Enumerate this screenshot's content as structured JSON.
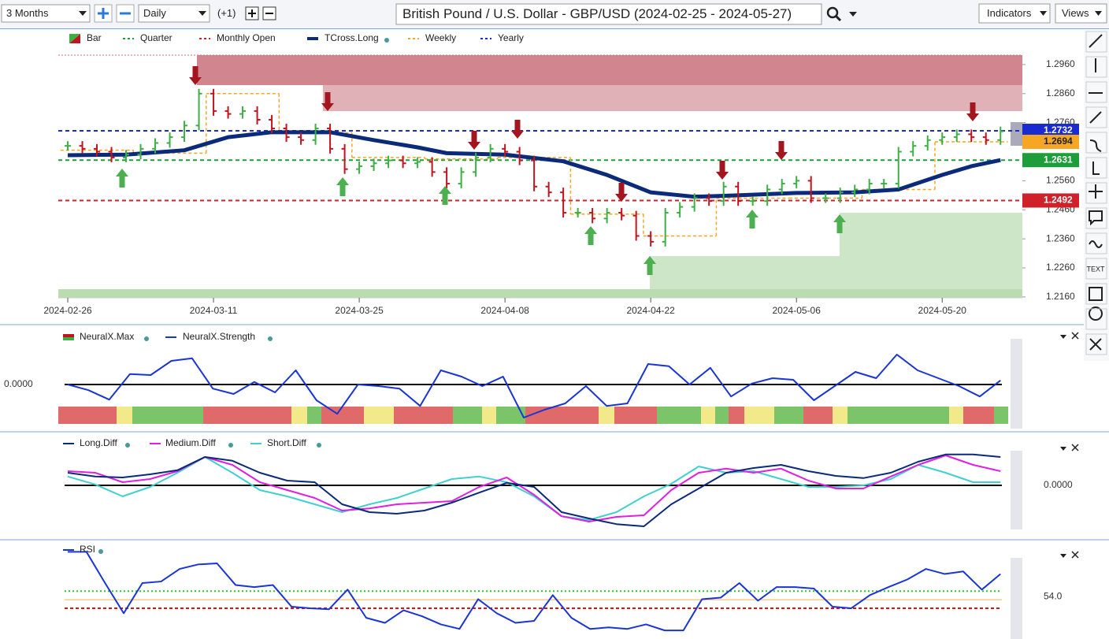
{
  "toolbar": {
    "range": "3 Months",
    "interval": "Daily",
    "offset": "(+1)",
    "title": "British Pound / U.S. Dollar - GBP/USD (2024-02-25 - 2024-05-27)",
    "indicators": "Indicators",
    "views": "Views",
    "text_tool": "TEXT"
  },
  "chart_data": [
    {
      "type": "bar",
      "series": [
        {
          "name": "Bar",
          "up_color": "#3cb043",
          "down_color": "#c0141e",
          "values": [
            1.268,
            1.267,
            1.266,
            1.264,
            1.265,
            1.267,
            1.269,
            1.271,
            1.275,
            1.286,
            1.28,
            1.279,
            1.28,
            1.277,
            1.274,
            1.271,
            1.27,
            1.274,
            1.267,
            1.26,
            1.261,
            1.262,
            1.263,
            1.262,
            1.2625,
            1.259,
            1.255,
            1.259,
            1.264,
            1.267,
            1.266,
            1.263,
            1.254,
            1.252,
            1.245,
            1.245,
            1.243,
            1.245,
            1.244,
            1.237,
            1.235,
            1.245,
            1.247,
            1.25,
            1.249,
            1.254,
            1.249,
            1.249,
            1.253,
            1.255,
            1.256,
            1.25,
            1.25,
            1.252,
            1.253,
            1.255,
            1.255,
            1.266,
            1.268,
            1.27,
            1.271,
            1.272,
            1.271,
            1.27,
            1.273
          ]
        }
      ],
      "lines": [
        {
          "name": "TCross.Long",
          "color": "#0b2a7a",
          "x": [
            0,
            4,
            8,
            11,
            14,
            18,
            21,
            24,
            26,
            30,
            34,
            37,
            40,
            43,
            46,
            50,
            54,
            57,
            60,
            62,
            64
          ],
          "values": [
            1.2648,
            1.265,
            1.2665,
            1.271,
            1.2727,
            1.2727,
            1.27,
            1.2675,
            1.2655,
            1.265,
            1.2627,
            1.258,
            1.252,
            1.2505,
            1.251,
            1.2518,
            1.252,
            1.253,
            1.258,
            1.261,
            1.2631
          ]
        },
        {
          "name": "Weekly",
          "color": "#f5a623",
          "values": [
            1.2665,
            1.2655,
            1.286,
            1.2725,
            1.264,
            1.2635,
            1.264,
            1.2445,
            1.237,
            1.25,
            1.25,
            1.253,
            1.2694
          ],
          "value_labels": [
            null,
            null,
            null,
            null,
            null,
            null,
            null,
            null,
            null,
            null,
            null,
            null,
            "1.2694"
          ]
        }
      ],
      "levels": [
        {
          "name": "Quarter",
          "color": "#1e9e3a",
          "value": 1.2631,
          "label": "1.2631"
        },
        {
          "name": "Monthly Open",
          "color": "#d0202a",
          "value": 1.2492,
          "label": "1.2492"
        },
        {
          "name": "Yearly",
          "color": "#1a2bd0",
          "value": 1.2732,
          "label": "1.2732"
        }
      ],
      "xlim": [
        -0.65,
        65.5
      ],
      "xticks": [
        {
          "value": 0,
          "label": "2024-02-26"
        },
        {
          "value": 10,
          "label": "2024-03-11"
        },
        {
          "value": 20,
          "label": "2024-03-25"
        },
        {
          "value": 30,
          "label": "2024-04-08"
        },
        {
          "value": 40,
          "label": "2024-04-22"
        },
        {
          "value": 50,
          "label": "2024-05-06"
        },
        {
          "value": 60,
          "label": "2024-05-20"
        }
      ],
      "ylim": [
        1.2157,
        1.3014
      ],
      "yticks": [
        {
          "value": 1.296,
          "label": "1.2960"
        },
        {
          "value": 1.286,
          "label": "1.2860"
        },
        {
          "value": 1.276,
          "label": "1.2760"
        },
        {
          "value": 1.256,
          "label": "1.2560"
        },
        {
          "value": 1.246,
          "label": "1.2460"
        },
        {
          "value": 1.236,
          "label": "1.2360"
        },
        {
          "value": 1.226,
          "label": "1.2260"
        },
        {
          "value": 1.216,
          "label": "1.2160"
        }
      ]
    },
    {
      "type": "line",
      "series": [
        {
          "name": "NeuralX.Max",
          "colors": [
            "#e06a6a",
            "#7cc46a",
            "#f2e98a"
          ]
        },
        {
          "name": "NeuralX.Strength",
          "color": "#1a35d6",
          "values": [
            0,
            -0.18,
            -0.48,
            0.33,
            0.3,
            0.75,
            0.83,
            -0.13,
            -0.3,
            0.08,
            -0.25,
            0.45,
            -0.5,
            -0.93,
            0,
            -0.05,
            -0.13,
            -0.68,
            0.45,
            0.25,
            -0.05,
            0.25,
            -1.05,
            -0.8,
            -0.6,
            -0.05,
            -0.68,
            -0.6,
            0.65,
            0.58,
            0,
            0.53,
            -0.38,
            0.03,
            0.2,
            0.15,
            -0.5,
            -0.05,
            0.4,
            0.2,
            0.95,
            0.45,
            0.2,
            -0.05,
            -0.38,
            0.13
          ]
        }
      ],
      "ylim": [
        -1.4,
        1.4
      ],
      "yticks": [
        {
          "value": 0,
          "label": "0.0000"
        }
      ]
    },
    {
      "type": "line",
      "series": [
        {
          "name": "Long.Diff",
          "color": "#0b2a7a",
          "values": [
            0.4,
            0.28,
            0.25,
            0.35,
            0.48,
            0.9,
            0.78,
            0.4,
            0.15,
            0.1,
            -0.6,
            -0.85,
            -0.9,
            -0.8,
            -0.55,
            -0.23,
            0.08,
            -0.05,
            -0.85,
            -1.05,
            -1.23,
            -1.3,
            -0.6,
            -0.1,
            0.4,
            0.55,
            0.65,
            0.45,
            0.3,
            0.23,
            0.4,
            0.75,
            0.98,
            0.98,
            0.9
          ]
        },
        {
          "name": "Medium.Diff",
          "color": "#e020e0",
          "values": [
            0.45,
            0.4,
            0.1,
            0.2,
            0.45,
            0.9,
            0.65,
            0.1,
            -0.15,
            -0.4,
            -0.8,
            -0.73,
            -0.6,
            -0.55,
            -0.5,
            -0.05,
            0.25,
            -0.3,
            -0.98,
            -1.15,
            -1.0,
            -0.95,
            -0.15,
            0.4,
            0.53,
            0.4,
            0.53,
            0.15,
            -0.1,
            -0.1,
            0.28,
            0.65,
            0.95,
            0.65,
            0.45
          ]
        },
        {
          "name": "Short.Diff",
          "color": "#40d0d0",
          "values": [
            0.28,
            0.03,
            -0.35,
            -0.05,
            0.4,
            0.9,
            0.4,
            -0.15,
            -0.35,
            -0.6,
            -0.85,
            -0.6,
            -0.4,
            -0.1,
            0.2,
            0.28,
            0.1,
            -0.35,
            -0.98,
            -1.1,
            -0.85,
            -0.35,
            0.05,
            0.6,
            0.4,
            0.45,
            0.2,
            -0.05,
            -0.05,
            0,
            0.2,
            0.65,
            0.4,
            0.1,
            0.1
          ]
        }
      ],
      "ylim": [
        -1.6,
        1.6
      ],
      "yticks": [
        {
          "value": 0,
          "label": "0.0000"
        }
      ]
    },
    {
      "type": "line",
      "series": [
        {
          "name": "RSI",
          "color": "#1a35d6",
          "values": [
            62.9,
            62.9,
            56.7,
            50.7,
            56.7,
            57.0,
            59.5,
            60.4,
            60.6,
            56.3,
            55.9,
            56.3,
            52.0,
            51.7,
            51.5,
            55.4,
            49.8,
            48.8,
            51.3,
            50.1,
            48.5,
            47.6,
            53.5,
            50.7,
            48.8,
            49.2,
            54.3,
            49.8,
            47.6,
            47.9,
            47.6,
            48.5,
            47.3,
            47.3,
            53.5,
            53.8,
            56.7,
            53.2,
            55.9,
            55.9,
            55.6,
            52.0,
            51.7,
            54.3,
            55.9,
            57.4,
            59.5,
            58.5,
            59.0,
            55.4,
            58.5
          ]
        }
      ],
      "levels": [
        {
          "value": 55.1,
          "color": "#22cc22"
        },
        {
          "value": 53.4,
          "color": "#f0b050"
        },
        {
          "value": 51.7,
          "color": "#e01010"
        }
      ],
      "ylim": [
        45.6,
        64.2
      ],
      "yticks": [
        {
          "value": 54,
          "label": "54.0"
        }
      ]
    }
  ]
}
